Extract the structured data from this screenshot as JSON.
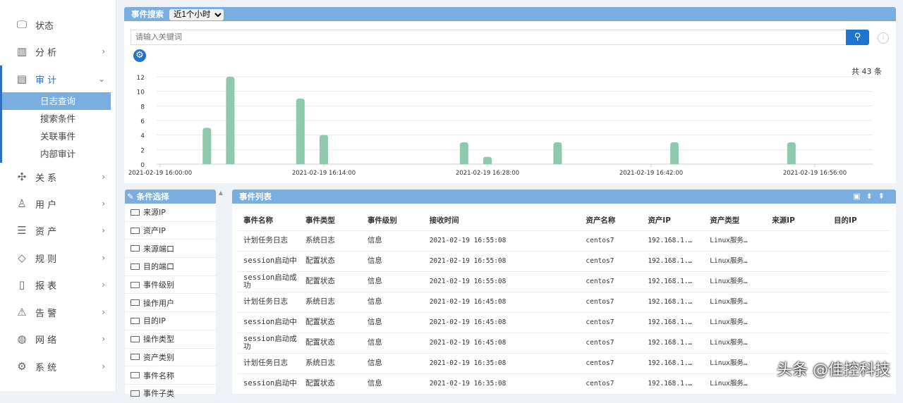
{
  "sidebar": {
    "items": [
      {
        "label": "状态",
        "icon": "monitor-icon"
      },
      {
        "label": "分 析",
        "icon": "bar-chart-icon"
      },
      {
        "label": "审 计",
        "icon": "audit-icon",
        "open": true
      },
      {
        "label": "关 系",
        "icon": "relation-icon"
      },
      {
        "label": "用 户",
        "icon": "user-icon"
      },
      {
        "label": "资 产",
        "icon": "server-icon"
      },
      {
        "label": "规 则",
        "icon": "rule-icon"
      },
      {
        "label": "报 表",
        "icon": "report-icon"
      },
      {
        "label": "告 警",
        "icon": "alarm-icon"
      },
      {
        "label": "网 络",
        "icon": "globe-icon"
      },
      {
        "label": "系 统",
        "icon": "gear-icon"
      }
    ],
    "audit_sub": [
      "日志查询",
      "搜索条件",
      "关联事件",
      "内部审计"
    ],
    "active_sub": "日志查询"
  },
  "search": {
    "title": "事件搜索",
    "range": "近1个小时",
    "placeholder": "请输入关键词",
    "total": "共 43 条"
  },
  "chart_data": {
    "type": "bar",
    "x_ticks": [
      "2021-02-19 16:00:00",
      "2021-02-19 16:14:00",
      "2021-02-19 16:28:00",
      "2021-02-19 16:42:00",
      "2021-02-19 16:56:00"
    ],
    "x": [
      "2021-02-19 16:04:00",
      "2021-02-19 16:06:00",
      "2021-02-19 16:12:00",
      "2021-02-19 16:14:00",
      "2021-02-19 16:26:00",
      "2021-02-19 16:28:00",
      "2021-02-19 16:34:00",
      "2021-02-19 16:44:00",
      "2021-02-19 16:54:00"
    ],
    "values": [
      5,
      12,
      9,
      4,
      3,
      1,
      3,
      3,
      3
    ],
    "y_ticks": [
      0,
      2,
      4,
      6,
      8,
      10,
      12
    ],
    "ylim": [
      0,
      12
    ],
    "grid": true,
    "color": "#8fc9ad"
  },
  "conditions": {
    "title": "条件选择",
    "items": [
      "来源IP",
      "资产IP",
      "来源端口",
      "目的端口",
      "事件级别",
      "操作用户",
      "目的IP",
      "操作类型",
      "资产类别",
      "事件名称",
      "事件子类"
    ]
  },
  "events": {
    "title": "事件列表",
    "columns": [
      "事件名称",
      "事件类型",
      "事件级别",
      "接收时间",
      "资产名称",
      "资产IP",
      "资产类型",
      "来源IP",
      "目的IP"
    ],
    "rows": [
      [
        "计划任务日志",
        "系统日志",
        "信息",
        "2021-02-19 16:55:08",
        "centos7",
        "192.168.1.…",
        "Linux服务…",
        "",
        ""
      ],
      [
        "session启动中",
        "配置状态",
        "信息",
        "2021-02-19 16:55:08",
        "centos7",
        "192.168.1.…",
        "Linux服务…",
        "",
        ""
      ],
      [
        "session启动成功",
        "配置状态",
        "信息",
        "2021-02-19 16:55:08",
        "centos7",
        "192.168.1.…",
        "Linux服务…",
        "",
        ""
      ],
      [
        "计划任务日志",
        "系统日志",
        "信息",
        "2021-02-19 16:45:08",
        "centos7",
        "192.168.1.…",
        "Linux服务…",
        "",
        ""
      ],
      [
        "session启动中",
        "配置状态",
        "信息",
        "2021-02-19 16:45:08",
        "centos7",
        "192.168.1.…",
        "Linux服务…",
        "",
        ""
      ],
      [
        "session启动成功",
        "配置状态",
        "信息",
        "2021-02-19 16:45:08",
        "centos7",
        "192.168.1.…",
        "Linux服务…",
        "",
        ""
      ],
      [
        "计划任务日志",
        "系统日志",
        "信息",
        "2021-02-19 16:35:08",
        "centos7",
        "192.168.1.…",
        "Linux服务…",
        "",
        ""
      ],
      [
        "session启动中",
        "配置状态",
        "信息",
        "2021-02-19 16:35:08",
        "centos7",
        "192.168.1.…",
        "Linux服务…",
        "",
        ""
      ]
    ]
  },
  "watermark": "头条 @佳控科技"
}
